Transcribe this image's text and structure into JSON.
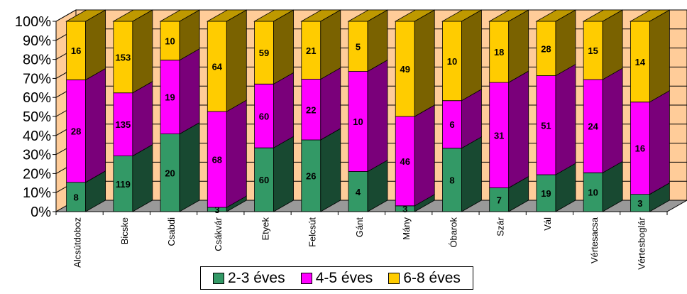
{
  "chart_data": {
    "type": "bar",
    "stacked": "percent",
    "y_ticks": [
      "0%",
      "10%",
      "20%",
      "30%",
      "40%",
      "50%",
      "60%",
      "70%",
      "80%",
      "90%",
      "100%"
    ],
    "ylim": [
      0,
      100
    ],
    "legend_position": "bottom",
    "categories": [
      "Alcsútdoboz",
      "Bicske",
      "Csabdi",
      "Csákvár",
      "Etyek",
      "Felcsút",
      "Gánt",
      "Mány",
      "Óbarok",
      "Szár",
      "Vál",
      "Vértesacsa",
      "Vértesboglár"
    ],
    "series": [
      {
        "name": "2-3 éves",
        "color": "#339966",
        "values": [
          8,
          119,
          20,
          3,
          60,
          26,
          4,
          3,
          8,
          7,
          19,
          10,
          3
        ]
      },
      {
        "name": "4-5 éves",
        "color": "#FF00FF",
        "values": [
          28,
          135,
          19,
          68,
          60,
          22,
          10,
          46,
          6,
          31,
          51,
          24,
          16
        ]
      },
      {
        "name": "6-8 éves",
        "color": "#FFCC00",
        "values": [
          16,
          153,
          10,
          64,
          59,
          21,
          5,
          49,
          10,
          18,
          28,
          15,
          14
        ]
      }
    ],
    "colors": {
      "back_wall": "#FFCC99",
      "floor": "#999999",
      "gridline": "#000000"
    }
  }
}
